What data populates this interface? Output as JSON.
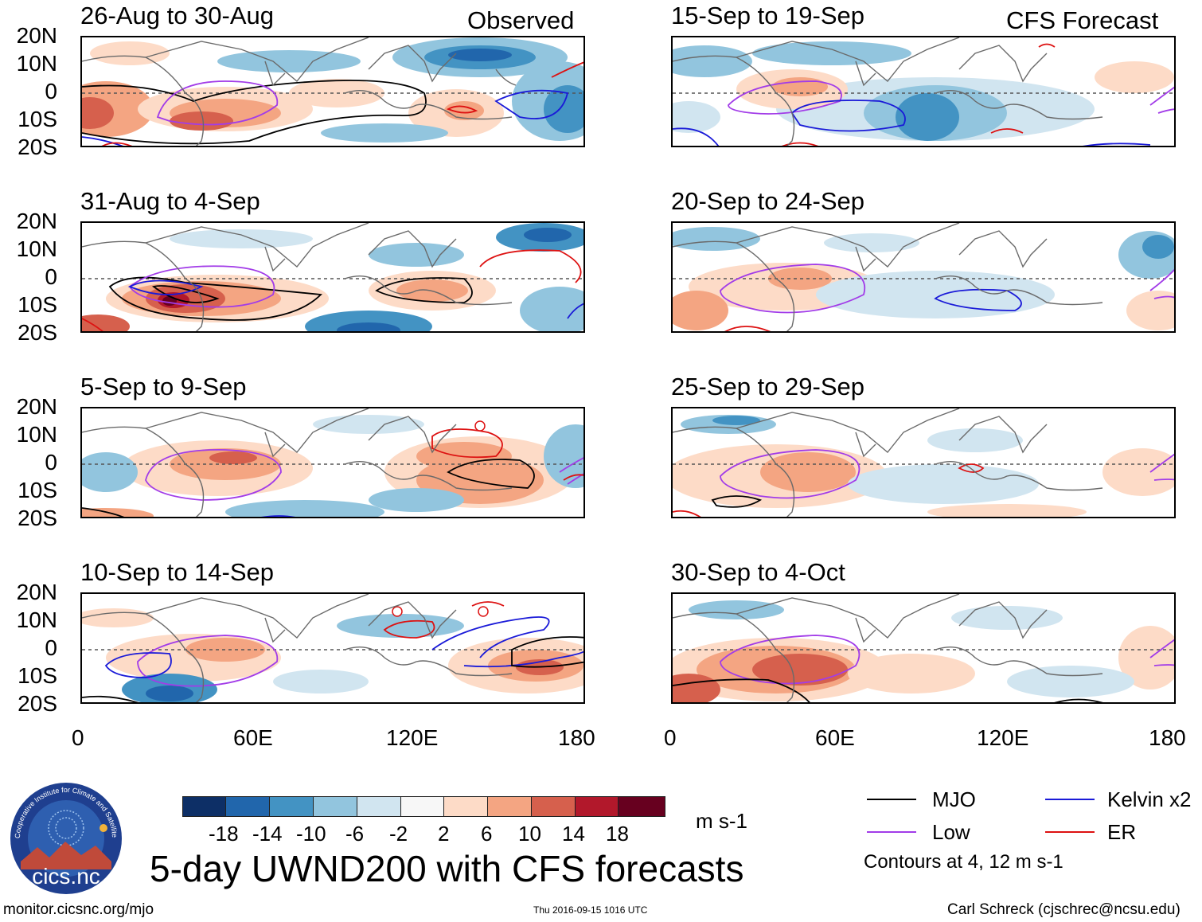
{
  "colors": {
    "mjo": "#000000",
    "kelvin": "#1a1ad8",
    "low": "#a23ce8",
    "er": "#dd1111",
    "scale": [
      "#0d2f66",
      "#2166ac",
      "#4393c3",
      "#92c5de",
      "#d1e5f0",
      "#f7f7f7",
      "#fddbc7",
      "#f4a582",
      "#d6604d",
      "#b2182b",
      "#67001f"
    ]
  },
  "observed": {
    "label": "Observed",
    "panels": [
      {
        "title": "26-Aug to 30-Aug"
      },
      {
        "title": "31-Aug to 4-Sep"
      },
      {
        "title": "5-Sep to 9-Sep"
      },
      {
        "title": "10-Sep to 14-Sep"
      }
    ]
  },
  "forecast": {
    "label": "CFS Forecast",
    "panels": [
      {
        "title": "15-Sep to 19-Sep"
      },
      {
        "title": "20-Sep to 24-Sep"
      },
      {
        "title": "25-Sep to 29-Sep"
      },
      {
        "title": "30-Sep to 4-Oct"
      }
    ]
  },
  "axes": {
    "lat_labels": [
      "20N",
      "10N",
      "0",
      "10S",
      "20S"
    ],
    "lon_labels": [
      "0",
      "60E",
      "120E",
      "180"
    ]
  },
  "colorbar": {
    "labels": [
      "-18",
      "-14",
      "-10",
      "-6",
      "-2",
      "2",
      "6",
      "10",
      "14",
      "18"
    ],
    "unit": "m s-1"
  },
  "legend": {
    "mjo": "MJO",
    "kelvin": "Kelvin x2",
    "low": "Low",
    "er": "ER",
    "note": "Contours at 4, 12 m s-1"
  },
  "logo": {
    "ring_text": "Cooperative Institute for Climate and Satellites",
    "name": "cics.nc"
  },
  "title": "5-day UWND200 with CFS forecasts",
  "footer": {
    "url": "monitor.cicsnc.org/mjo",
    "timestamp": "Thu 2016-09-15 1016 UTC",
    "author": "Carl Schreck (cjschrec@ncsu.edu)"
  }
}
